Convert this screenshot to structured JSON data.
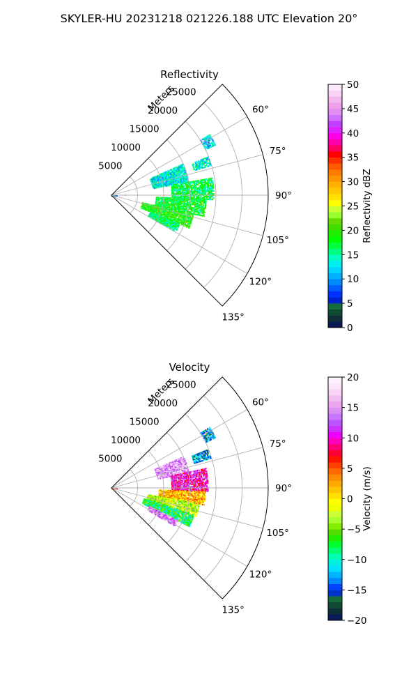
{
  "figure": {
    "title": "SKYLER-HU  20231218  021226.188 UTC Elevation 20°"
  },
  "chart_data": [
    {
      "type": "heatmap",
      "title": "Reflectivity",
      "radial_axis_label": "Meters",
      "radial_range": [
        0,
        30000
      ],
      "radial_ticks": [
        5000,
        10000,
        15000,
        20000,
        25000
      ],
      "radial_tick_labels": [
        "5000",
        "10000",
        "15000",
        "20000",
        "25000"
      ],
      "azimuth_range": [
        45,
        135
      ],
      "azimuth_ticks": [
        60,
        75,
        90,
        105,
        120,
        135
      ],
      "azimuth_tick_labels": [
        "60°",
        "75°",
        "90°",
        "105°",
        "120°",
        "135°"
      ],
      "grid": true,
      "colorbar": {
        "label": "Reflectivity dBZ",
        "range": [
          0,
          50
        ],
        "ticks": [
          0,
          5,
          10,
          15,
          20,
          25,
          30,
          35,
          40,
          45,
          50
        ],
        "tick_labels": [
          "0",
          "5",
          "10",
          "15",
          "20",
          "25",
          "30",
          "35",
          "40",
          "45",
          "50"
        ]
      },
      "echo_regions": [
        {
          "az": [
            66,
            80
          ],
          "r": [
            8000,
            15000
          ],
          "value": 13
        },
        {
          "az": [
            68,
            73
          ],
          "r": [
            16500,
            20000
          ],
          "value": 13
        },
        {
          "az": [
            80,
            92
          ],
          "r": [
            11500,
            19500
          ],
          "value": 17
        },
        {
          "az": [
            92,
            103
          ],
          "r": [
            8500,
            18000
          ],
          "value": 18
        },
        {
          "az": [
            103,
            113
          ],
          "r": [
            6000,
            16000
          ],
          "value": 19
        },
        {
          "az": [
            113,
            120
          ],
          "r": [
            8000,
            14000
          ],
          "value": 16
        },
        {
          "az": [
            58,
            64
          ],
          "r": [
            20000,
            22000
          ],
          "value": 12
        },
        {
          "az": [
            88,
            93
          ],
          "r": [
            0,
            900
          ],
          "value": 7
        }
      ]
    },
    {
      "type": "heatmap",
      "title": "Velocity",
      "radial_axis_label": "Meters",
      "radial_range": [
        0,
        30000
      ],
      "radial_ticks": [
        5000,
        10000,
        15000,
        20000,
        25000
      ],
      "radial_tick_labels": [
        "5000",
        "10000",
        "15000",
        "20000",
        "25000"
      ],
      "azimuth_range": [
        45,
        135
      ],
      "azimuth_ticks": [
        60,
        75,
        90,
        105,
        120,
        135
      ],
      "azimuth_tick_labels": [
        "60°",
        "75°",
        "90°",
        "105°",
        "120°",
        "135°"
      ],
      "grid": true,
      "colorbar": {
        "label": "Velocity (m/s)",
        "range": [
          -20,
          20
        ],
        "ticks": [
          -20,
          -15,
          -10,
          -5,
          0,
          5,
          10,
          15,
          20
        ],
        "tick_labels": [
          "−20",
          "−15",
          "−10",
          "−5",
          "0",
          "5",
          "10",
          "15",
          "20"
        ]
      },
      "echo_regions": [
        {
          "az": [
            66,
            78
          ],
          "r": [
            9000,
            15000
          ],
          "value": 15
        },
        {
          "az": [
            68,
            73
          ],
          "r": [
            16500,
            20000
          ],
          "value": -14
        },
        {
          "az": [
            78,
            92
          ],
          "r": [
            11500,
            18500
          ],
          "value": 10
        },
        {
          "az": [
            92,
            100
          ],
          "r": [
            9000,
            18000
          ],
          "value": 2
        },
        {
          "az": [
            100,
            108
          ],
          "r": [
            7000,
            17000
          ],
          "value": -3
        },
        {
          "az": [
            108,
            116
          ],
          "r": [
            6500,
            16500
          ],
          "value": -8
        },
        {
          "az": [
            116,
            121
          ],
          "r": [
            8000,
            14000
          ],
          "value": 14
        },
        {
          "az": [
            58,
            64
          ],
          "r": [
            20000,
            22000
          ],
          "value": -14
        },
        {
          "az": [
            88,
            93
          ],
          "r": [
            0,
            900
          ],
          "value": 6
        }
      ]
    }
  ]
}
